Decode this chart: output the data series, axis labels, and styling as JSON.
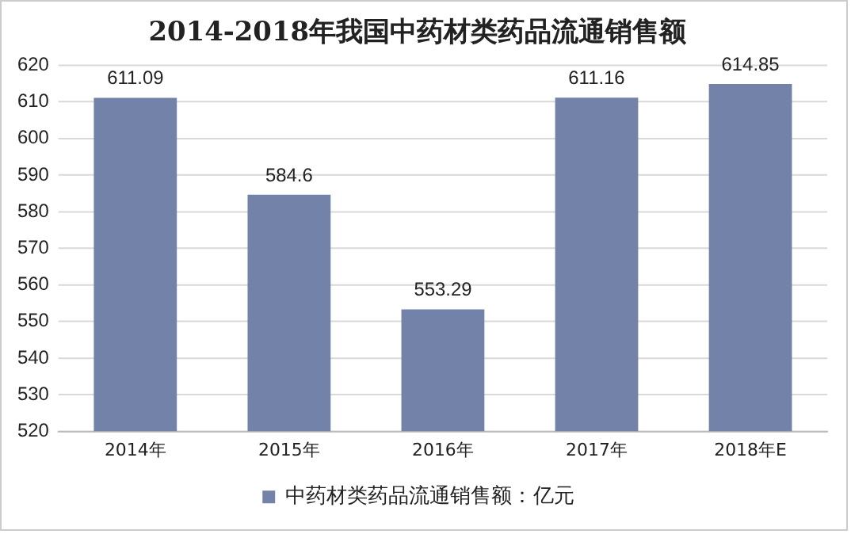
{
  "chart_data": {
    "type": "bar",
    "title": "2014-2018年我国中药材类药品流通销售额",
    "categories": [
      "2014年",
      "2015年",
      "2016年",
      "2017年",
      "2018年E"
    ],
    "series": [
      {
        "name": "中药材类药品流通销售额：亿元",
        "color": "#7282a8",
        "values": [
          611.09,
          584.6,
          553.29,
          611.16,
          614.85
        ]
      }
    ],
    "ylim": [
      520,
      620
    ],
    "yticks": [
      520,
      530,
      540,
      550,
      560,
      570,
      580,
      590,
      600,
      610,
      620
    ],
    "grid": "y",
    "legend": "bottom",
    "data_labels": true
  }
}
